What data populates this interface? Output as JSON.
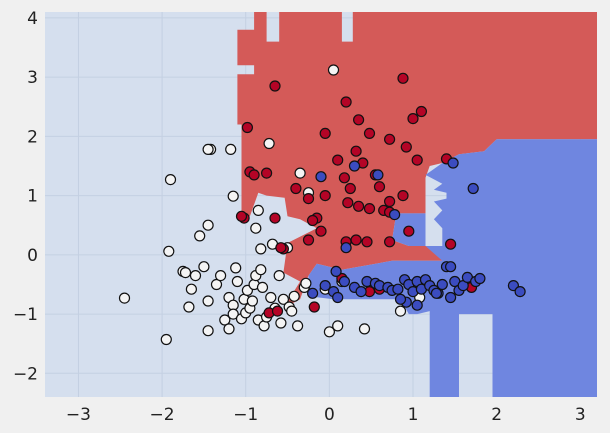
{
  "chart_data": {
    "type": "scatter",
    "title": "",
    "xlabel": "",
    "ylabel": "",
    "xlim": [
      -3.4,
      3.2
    ],
    "ylim": [
      -2.4,
      4.1
    ],
    "xticks": [
      "−3",
      "−2",
      "−1",
      "0",
      "1",
      "2",
      "3"
    ],
    "yticks": [
      "−2",
      "−1",
      "0",
      "1",
      "2",
      "3",
      "4"
    ],
    "grid": true,
    "colors": {
      "figure_bg": "#f0f0f0",
      "region_default": "#d5dfee",
      "region_red": "#d45a58",
      "region_blue": "#6f86e0",
      "grid": "#c4d0e2",
      "point_white": "#f4f4f4",
      "point_red": "#b40426",
      "point_blue": "#3b4cc0",
      "point_edge": "#111111"
    },
    "decision_regions": [
      {
        "class": "red",
        "polygon": [
          [
            -1.1,
            3.8
          ],
          [
            -0.9,
            3.8
          ],
          [
            -0.9,
            4.1
          ],
          [
            -0.75,
            4.1
          ],
          [
            -0.75,
            3.6
          ],
          [
            -0.6,
            3.6
          ],
          [
            -0.6,
            4.1
          ],
          [
            0.15,
            4.1
          ],
          [
            0.15,
            3.6
          ],
          [
            0.28,
            3.6
          ],
          [
            0.28,
            4.1
          ],
          [
            3.2,
            4.1
          ],
          [
            3.2,
            1.95
          ],
          [
            2.0,
            1.95
          ],
          [
            1.85,
            1.75
          ],
          [
            1.55,
            1.7
          ],
          [
            1.35,
            1.55
          ],
          [
            1.2,
            1.5
          ],
          [
            1.15,
            1.3
          ],
          [
            1.15,
            0.7
          ],
          [
            0.8,
            0.7
          ],
          [
            0.75,
            0.25
          ],
          [
            0.95,
            0.15
          ],
          [
            1.35,
            0.15
          ],
          [
            1.35,
            -0.1
          ],
          [
            0.75,
            -0.1
          ],
          [
            0.15,
            -0.25
          ],
          [
            -0.15,
            -0.15
          ],
          [
            -0.25,
            -0.35
          ],
          [
            -0.35,
            -0.75
          ],
          [
            -0.55,
            -0.9
          ],
          [
            -0.35,
            -0.45
          ],
          [
            -0.55,
            -0.3
          ],
          [
            -0.5,
            0.2
          ],
          [
            -0.15,
            0.45
          ],
          [
            -0.35,
            0.6
          ],
          [
            -0.5,
            0.65
          ],
          [
            -0.55,
            1.1
          ],
          [
            -0.75,
            1.25
          ],
          [
            -0.85,
            1.35
          ],
          [
            -0.85,
            1.55
          ],
          [
            -0.65,
            1.55
          ],
          [
            -0.65,
            1.95
          ],
          [
            -0.45,
            2.0
          ],
          [
            -0.45,
            1.45
          ],
          [
            -0.3,
            1.45
          ],
          [
            -0.3,
            1.95
          ],
          [
            -0.15,
            1.95
          ],
          [
            -0.15,
            1.55
          ],
          [
            -0.05,
            1.55
          ],
          [
            -0.05,
            1.05
          ],
          [
            -0.3,
            1.05
          ],
          [
            -0.45,
            0.95
          ],
          [
            -0.75,
            1.0
          ],
          [
            -0.85,
            1.05
          ],
          [
            -0.9,
            0.85
          ],
          [
            -0.95,
            0.65
          ],
          [
            -1.05,
            0.65
          ],
          [
            -1.05,
            2.2
          ],
          [
            -1.1,
            2.2
          ],
          [
            -1.1,
            3.05
          ],
          [
            -0.9,
            3.05
          ],
          [
            -0.9,
            3.2
          ],
          [
            -1.1,
            3.2
          ]
        ]
      },
      {
        "class": "blue",
        "polygon": [
          [
            3.2,
            1.95
          ],
          [
            2.0,
            1.95
          ],
          [
            1.85,
            1.75
          ],
          [
            1.55,
            1.7
          ],
          [
            1.35,
            1.55
          ],
          [
            1.25,
            1.45
          ],
          [
            1.15,
            1.35
          ],
          [
            1.35,
            1.2
          ],
          [
            1.25,
            1.1
          ],
          [
            1.4,
            1.05
          ],
          [
            1.4,
            0.95
          ],
          [
            1.25,
            0.9
          ],
          [
            1.35,
            0.75
          ],
          [
            1.25,
            0.6
          ],
          [
            1.35,
            0.45
          ],
          [
            1.35,
            0.15
          ],
          [
            0.95,
            0.15
          ],
          [
            0.75,
            0.25
          ],
          [
            0.8,
            0.7
          ],
          [
            1.15,
            0.7
          ],
          [
            1.15,
            0.15
          ],
          [
            1.35,
            -0.1
          ],
          [
            0.75,
            -0.1
          ],
          [
            0.15,
            -0.25
          ],
          [
            -0.15,
            -0.15
          ],
          [
            -0.25,
            -0.35
          ],
          [
            -0.25,
            -0.7
          ],
          [
            0.05,
            -0.75
          ],
          [
            0.85,
            -0.75
          ],
          [
            0.95,
            -1.0
          ],
          [
            1.05,
            -1.0
          ],
          [
            1.2,
            -0.95
          ],
          [
            1.2,
            -2.4
          ],
          [
            1.55,
            -2.4
          ],
          [
            1.55,
            -1.0
          ],
          [
            1.95,
            -1.0
          ],
          [
            1.95,
            -2.4
          ],
          [
            3.2,
            -2.4
          ]
        ]
      }
    ],
    "series": [
      {
        "class": "white",
        "points": [
          [
            -2.45,
            -0.73
          ],
          [
            -1.95,
            -1.43
          ],
          [
            -1.9,
            1.27
          ],
          [
            -1.92,
            0.06
          ],
          [
            -1.75,
            -0.28
          ],
          [
            -1.72,
            -0.3
          ],
          [
            -1.68,
            -0.88
          ],
          [
            -1.65,
            -0.58
          ],
          [
            -1.6,
            -0.35
          ],
          [
            -1.55,
            0.32
          ],
          [
            -1.5,
            -0.2
          ],
          [
            -1.45,
            0.5
          ],
          [
            -1.45,
            -0.78
          ],
          [
            -1.45,
            -1.28
          ],
          [
            -1.42,
            1.78
          ],
          [
            -1.35,
            -0.5
          ],
          [
            -1.3,
            -0.35
          ],
          [
            -1.25,
            -1.1
          ],
          [
            -1.2,
            -0.72
          ],
          [
            -1.2,
            -1.25
          ],
          [
            -1.15,
            0.99
          ],
          [
            -1.15,
            -0.85
          ],
          [
            -1.15,
            -1.0
          ],
          [
            -1.12,
            -0.22
          ],
          [
            -1.1,
            -0.45
          ],
          [
            -1.05,
            -1.08
          ],
          [
            -1.02,
            -0.75
          ],
          [
            -1.0,
            -0.98
          ],
          [
            -0.98,
            -0.6
          ],
          [
            -0.95,
            -0.9
          ],
          [
            -0.92,
            -0.78
          ],
          [
            -0.9,
            -0.5
          ],
          [
            -0.88,
            -0.35
          ],
          [
            -0.88,
            0.45
          ],
          [
            -0.85,
            0.75
          ],
          [
            -0.85,
            -1.1
          ],
          [
            -0.82,
            -0.25
          ],
          [
            -0.82,
            0.1
          ],
          [
            -0.8,
            -0.55
          ],
          [
            -0.78,
            -1.2
          ],
          [
            -0.75,
            -1.05
          ],
          [
            -0.72,
            1.88
          ],
          [
            -0.7,
            -0.72
          ],
          [
            -0.68,
            0.18
          ],
          [
            -0.65,
            -0.9
          ],
          [
            -0.6,
            -0.35
          ],
          [
            -0.58,
            -1.15
          ],
          [
            -0.55,
            -0.75
          ],
          [
            -0.5,
            0.12
          ],
          [
            -0.48,
            -0.88
          ],
          [
            -0.45,
            -0.95
          ],
          [
            -0.42,
            -0.7
          ],
          [
            -0.38,
            -1.2
          ],
          [
            -0.35,
            1.38
          ],
          [
            -0.3,
            -0.55
          ],
          [
            -0.28,
            -0.48
          ],
          [
            -0.25,
            1.05
          ],
          [
            -0.05,
            -0.58
          ],
          [
            -0.0,
            -1.3
          ],
          [
            0.05,
            3.12
          ],
          [
            0.1,
            -1.2
          ],
          [
            0.15,
            -0.45
          ],
          [
            0.42,
            -1.25
          ],
          [
            0.85,
            -0.95
          ],
          [
            1.08,
            -0.72
          ],
          [
            -1.45,
            1.78
          ],
          [
            -1.18,
            1.78
          ]
        ]
      },
      {
        "class": "red",
        "points": [
          [
            -0.65,
            2.85
          ],
          [
            0.88,
            2.98
          ],
          [
            0.2,
            2.58
          ],
          [
            0.35,
            2.28
          ],
          [
            1.0,
            2.3
          ],
          [
            1.1,
            2.42
          ],
          [
            -0.98,
            2.15
          ],
          [
            -0.05,
            2.05
          ],
          [
            0.48,
            2.05
          ],
          [
            0.72,
            1.95
          ],
          [
            0.32,
            1.75
          ],
          [
            0.92,
            1.82
          ],
          [
            0.1,
            1.6
          ],
          [
            0.4,
            1.55
          ],
          [
            1.05,
            1.6
          ],
          [
            -0.95,
            1.4
          ],
          [
            -0.9,
            1.35
          ],
          [
            -0.75,
            1.38
          ],
          [
            -0.4,
            1.12
          ],
          [
            -0.25,
            0.95
          ],
          [
            -0.05,
            1.0
          ],
          [
            0.18,
            1.3
          ],
          [
            0.25,
            1.12
          ],
          [
            0.55,
            1.35
          ],
          [
            0.6,
            1.15
          ],
          [
            0.22,
            0.88
          ],
          [
            0.35,
            0.82
          ],
          [
            0.48,
            0.78
          ],
          [
            0.65,
            0.75
          ],
          [
            0.72,
            0.72
          ],
          [
            0.88,
            1.0
          ],
          [
            0.72,
            0.9
          ],
          [
            -1.02,
            0.62
          ],
          [
            -1.05,
            0.65
          ],
          [
            -0.65,
            0.62
          ],
          [
            -0.15,
            0.62
          ],
          [
            -0.2,
            0.58
          ],
          [
            -0.1,
            0.4
          ],
          [
            -0.25,
            0.25
          ],
          [
            -0.55,
            0.1
          ],
          [
            -0.58,
            0.12
          ],
          [
            0.2,
            0.22
          ],
          [
            0.32,
            0.25
          ],
          [
            0.45,
            0.22
          ],
          [
            0.72,
            0.22
          ],
          [
            0.95,
            0.4
          ],
          [
            1.45,
            0.18
          ],
          [
            1.4,
            1.62
          ],
          [
            0.15,
            -0.4
          ],
          [
            0.48,
            -0.62
          ],
          [
            1.7,
            -0.55
          ],
          [
            -0.72,
            -0.98
          ],
          [
            -0.62,
            -0.95
          ],
          [
            -0.18,
            -0.88
          ],
          [
            0.6,
            -0.58
          ]
        ]
      },
      {
        "class": "blue",
        "points": [
          [
            -0.1,
            1.32
          ],
          [
            0.3,
            1.5
          ],
          [
            0.58,
            1.35
          ],
          [
            0.78,
            0.68
          ],
          [
            1.48,
            1.55
          ],
          [
            1.72,
            1.12
          ],
          [
            0.2,
            0.12
          ],
          [
            -0.2,
            -0.65
          ],
          [
            -0.05,
            -0.52
          ],
          [
            0.05,
            -0.62
          ],
          [
            0.1,
            -0.72
          ],
          [
            0.08,
            -0.28
          ],
          [
            0.18,
            -0.45
          ],
          [
            0.3,
            -0.55
          ],
          [
            0.38,
            -0.62
          ],
          [
            0.45,
            -0.45
          ],
          [
            0.55,
            -0.48
          ],
          [
            0.6,
            -0.52
          ],
          [
            0.7,
            -0.55
          ],
          [
            0.75,
            -0.6
          ],
          [
            0.82,
            -0.58
          ],
          [
            0.9,
            -0.42
          ],
          [
            0.95,
            -0.5
          ],
          [
            1.0,
            -0.62
          ],
          [
            1.05,
            -0.45
          ],
          [
            1.1,
            -0.58
          ],
          [
            1.15,
            -0.42
          ],
          [
            1.2,
            -0.52
          ],
          [
            1.25,
            -0.6
          ],
          [
            1.3,
            -0.65
          ],
          [
            1.35,
            -0.5
          ],
          [
            1.4,
            -0.2
          ],
          [
            1.45,
            -0.2
          ],
          [
            1.5,
            -0.45
          ],
          [
            1.55,
            -0.6
          ],
          [
            1.6,
            -0.52
          ],
          [
            1.65,
            -0.38
          ],
          [
            1.75,
            -0.45
          ],
          [
            1.8,
            -0.4
          ],
          [
            0.92,
            -0.8
          ],
          [
            1.05,
            -0.85
          ],
          [
            1.28,
            -0.65
          ],
          [
            1.45,
            -0.72
          ],
          [
            2.2,
            -0.52
          ],
          [
            2.28,
            -0.62
          ],
          [
            0.85,
            -0.75
          ]
        ]
      }
    ]
  }
}
